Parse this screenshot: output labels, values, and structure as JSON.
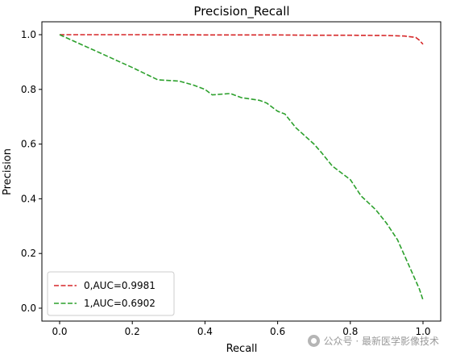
{
  "chart_data": {
    "type": "line",
    "title": "Precision_Recall",
    "xlabel": "Recall",
    "ylabel": "Precision",
    "xlim": [
      0.0,
      1.0
    ],
    "ylim": [
      0.0,
      1.0
    ],
    "xticks": [
      "0.0",
      "0.2",
      "0.4",
      "0.6",
      "0.8",
      "1.0"
    ],
    "yticks": [
      "0.0",
      "0.2",
      "0.4",
      "0.6",
      "0.8",
      "1.0"
    ],
    "grid": false,
    "legend_position": "lower-left",
    "series": [
      {
        "name": "0,AUC=0.9981",
        "color": "#d62728",
        "linestyle": "dashed",
        "x": [
          0.0,
          0.1,
          0.2,
          0.3,
          0.4,
          0.5,
          0.6,
          0.7,
          0.8,
          0.9,
          0.95,
          0.98,
          0.99,
          1.0
        ],
        "y": [
          1.0,
          1.0,
          1.0,
          1.0,
          0.999,
          0.999,
          0.999,
          0.998,
          0.998,
          0.997,
          0.995,
          0.99,
          0.98,
          0.965
        ]
      },
      {
        "name": "1,AUC=0.6902",
        "color": "#2ca02c",
        "linestyle": "dashed",
        "x": [
          0.0,
          0.05,
          0.1,
          0.15,
          0.2,
          0.27,
          0.33,
          0.37,
          0.4,
          0.42,
          0.47,
          0.5,
          0.55,
          0.57,
          0.6,
          0.62,
          0.65,
          0.7,
          0.72,
          0.75,
          0.8,
          0.83,
          0.87,
          0.9,
          0.93,
          0.96,
          0.99,
          1.0
        ],
        "y": [
          1.0,
          0.97,
          0.94,
          0.91,
          0.88,
          0.835,
          0.83,
          0.815,
          0.8,
          0.78,
          0.785,
          0.77,
          0.76,
          0.75,
          0.72,
          0.71,
          0.66,
          0.6,
          0.57,
          0.52,
          0.47,
          0.41,
          0.36,
          0.31,
          0.25,
          0.16,
          0.07,
          0.03
        ]
      }
    ]
  },
  "watermark": {
    "text": "公众号 · 最新医学影像技术",
    "icon": "wechat-icon"
  }
}
